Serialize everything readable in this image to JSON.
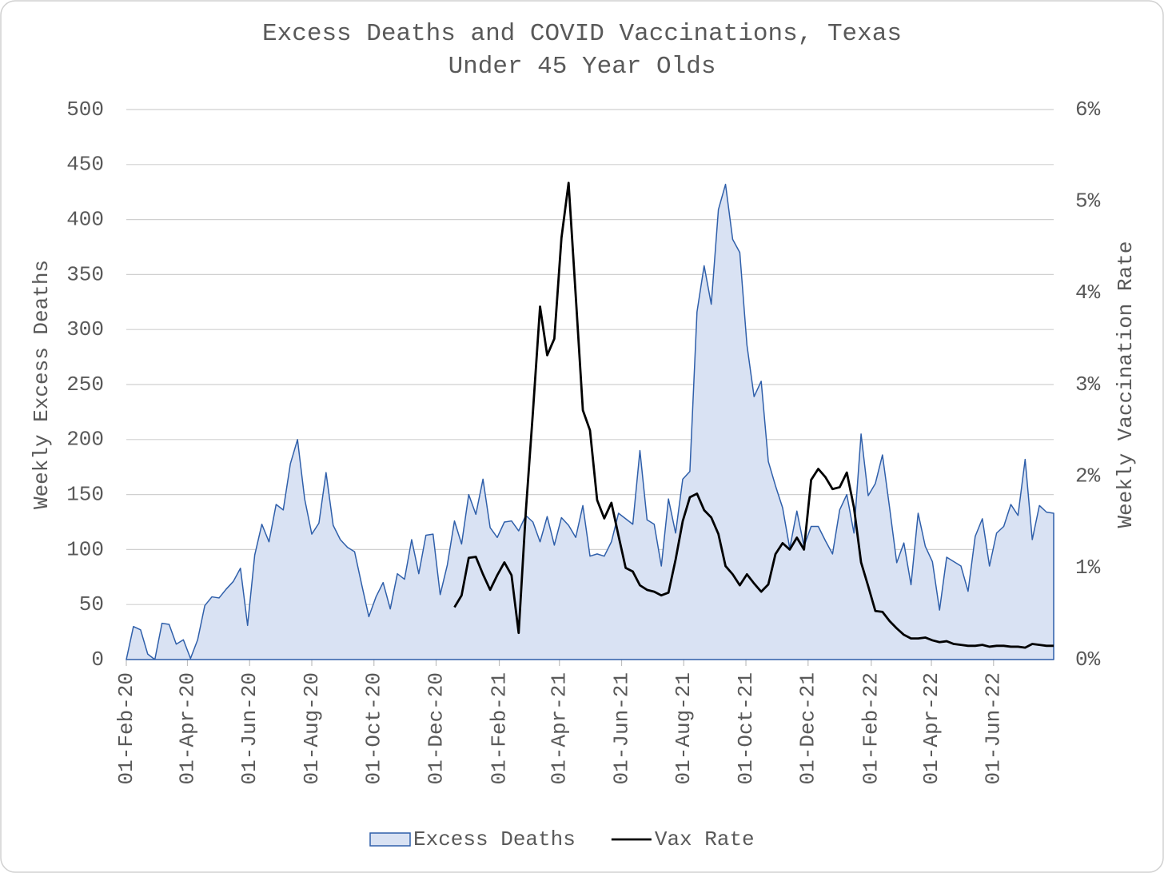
{
  "chart_data": {
    "type": "area",
    "title": "Excess Deaths and COVID Vaccinations, Texas",
    "subtitle": "Under 45 Year Olds",
    "y_label": "Weekly Excess Deaths",
    "y2_label": "Weekly Vaccination Rate",
    "x_start": "2020-02-01",
    "x_step_days": 7,
    "xlim": [
      "2020-02-01",
      "2022-07-30"
    ],
    "xticks": [
      {
        "value": "2020-02-01",
        "label": "01-Feb-20"
      },
      {
        "value": "2020-04-01",
        "label": "01-Apr-20"
      },
      {
        "value": "2020-06-01",
        "label": "01-Jun-20"
      },
      {
        "value": "2020-08-01",
        "label": "01-Aug-20"
      },
      {
        "value": "2020-10-01",
        "label": "01-Oct-20"
      },
      {
        "value": "2020-12-01",
        "label": "01-Dec-20"
      },
      {
        "value": "2021-02-01",
        "label": "01-Feb-21"
      },
      {
        "value": "2021-04-01",
        "label": "01-Apr-21"
      },
      {
        "value": "2021-06-01",
        "label": "01-Jun-21"
      },
      {
        "value": "2021-08-01",
        "label": "01-Aug-21"
      },
      {
        "value": "2021-10-01",
        "label": "01-Oct-21"
      },
      {
        "value": "2021-12-01",
        "label": "01-Dec-21"
      },
      {
        "value": "2022-02-01",
        "label": "01-Feb-22"
      },
      {
        "value": "2022-04-01",
        "label": "01-Apr-22"
      },
      {
        "value": "2022-06-01",
        "label": "01-Jun-22"
      }
    ],
    "ylim": [
      0,
      500
    ],
    "yticks": [
      0,
      50,
      100,
      150,
      200,
      250,
      300,
      350,
      400,
      450,
      500
    ],
    "y2lim": [
      0,
      6
    ],
    "y2ticks": [
      {
        "value": 0,
        "label": "0%"
      },
      {
        "value": 1,
        "label": "1%"
      },
      {
        "value": 2,
        "label": "2%"
      },
      {
        "value": 3,
        "label": "3%"
      },
      {
        "value": 4,
        "label": "4%"
      },
      {
        "value": 5,
        "label": "5%"
      },
      {
        "value": 6,
        "label": "6%"
      }
    ],
    "grid": true,
    "legend": "bottom",
    "series": [
      {
        "name": "Excess Deaths",
        "type": "area",
        "color": "#2f5faa",
        "fill": "#d9e2f3",
        "values": [
          0,
          30,
          27,
          5,
          0,
          33,
          32,
          14,
          18,
          1,
          18,
          49,
          57,
          56,
          64,
          71,
          83,
          31,
          95,
          123,
          107,
          141,
          136,
          178,
          200,
          146,
          114,
          124,
          170,
          122,
          109,
          102,
          98,
          68,
          39,
          57,
          70,
          46,
          78,
          73,
          109,
          78,
          113,
          114,
          59,
          86,
          126,
          105,
          150,
          132,
          164,
          120,
          111,
          125,
          126,
          117,
          131,
          125,
          107,
          130,
          104,
          129,
          122,
          111,
          140,
          94,
          96,
          94,
          107,
          133,
          128,
          123,
          190,
          127,
          123,
          85,
          146,
          115,
          164,
          171,
          316,
          358,
          323,
          409,
          432,
          382,
          370,
          286,
          239,
          253,
          180,
          158,
          138,
          101,
          135,
          103,
          121,
          121,
          108,
          96,
          136,
          150,
          115,
          205,
          149,
          160,
          186,
          138,
          88,
          106,
          68,
          133,
          103,
          89,
          45,
          93,
          89,
          85,
          62,
          112,
          128,
          85,
          115,
          121,
          141,
          131,
          182,
          109,
          140,
          134,
          133
        ]
      },
      {
        "name": "Vax Rate",
        "type": "line",
        "axis": "y2",
        "color": "#000000",
        "values": [
          null,
          null,
          null,
          null,
          null,
          null,
          null,
          null,
          null,
          null,
          null,
          null,
          null,
          null,
          null,
          null,
          null,
          null,
          null,
          null,
          null,
          null,
          null,
          null,
          null,
          null,
          null,
          null,
          null,
          null,
          null,
          null,
          null,
          null,
          null,
          null,
          null,
          null,
          null,
          null,
          null,
          null,
          null,
          null,
          null,
          null,
          0.57,
          0.7,
          1.11,
          1.12,
          0.93,
          0.76,
          0.92,
          1.06,
          0.92,
          0.29,
          1.61,
          2.7,
          3.85,
          3.32,
          3.5,
          4.6,
          5.2,
          3.97,
          2.72,
          2.5,
          1.74,
          1.54,
          1.71,
          1.35,
          1.0,
          0.96,
          0.81,
          0.76,
          0.74,
          0.7,
          0.73,
          1.09,
          1.51,
          1.77,
          1.81,
          1.63,
          1.55,
          1.37,
          1.02,
          0.93,
          0.81,
          0.93,
          0.83,
          0.74,
          0.82,
          1.15,
          1.27,
          1.2,
          1.33,
          1.2,
          1.96,
          2.08,
          1.99,
          1.86,
          1.88,
          2.04,
          1.66,
          1.06,
          0.8,
          0.53,
          0.52,
          0.42,
          0.34,
          0.27,
          0.23,
          0.23,
          0.24,
          0.21,
          0.19,
          0.2,
          0.17,
          0.16,
          0.15,
          0.15,
          0.16,
          0.14,
          0.15,
          0.15,
          0.14,
          0.14,
          0.13,
          0.17,
          0.16,
          0.15,
          0.15
        ]
      }
    ]
  }
}
